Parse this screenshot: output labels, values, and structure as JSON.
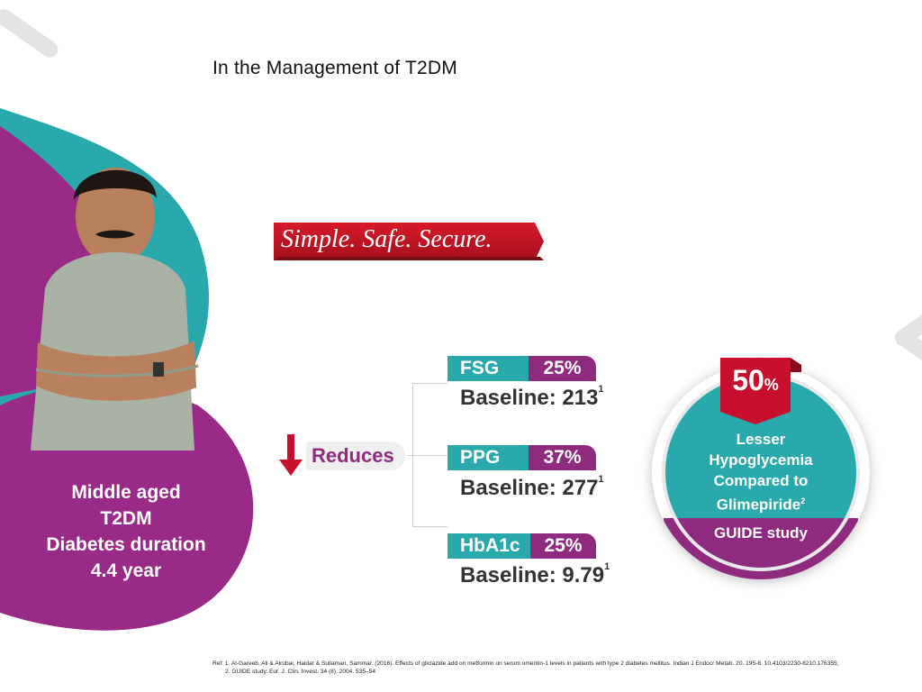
{
  "title": "In the Management of T2DM",
  "patient": {
    "lines": [
      "Middle aged",
      "T2DM",
      "Diabetes duration",
      "4.4 year"
    ]
  },
  "tagline": "Simple. Safe. Secure.",
  "reduces_label": "Reduces",
  "metrics": [
    {
      "name": "FSG",
      "percent": "25%",
      "baseline": "Baseline: 213",
      "ref": "1"
    },
    {
      "name": "PPG",
      "percent": "37%",
      "baseline": "Baseline: 277",
      "ref": "1"
    },
    {
      "name": "HbA1c",
      "percent": "25%",
      "baseline": "Baseline: 9.79",
      "ref": "1"
    }
  ],
  "badge": {
    "value": "50",
    "unit": "%",
    "line1": "Lesser",
    "line2": "Hypoglycemia",
    "line3": "Compared to",
    "line4": "Glimepiride",
    "line4_ref": "2",
    "study": "GUIDE study"
  },
  "references": {
    "line1": "Ref: 1. Al-Gareeb, Ali & Alrubai, Haidar & Suliaman, Sammar. (2016). Effects of gliclazide add on metformin on serum omentin-1 levels in patients with type 2 diabetes mellitus. Indian J Endocr Metab. 20. 195-8. 10.4103/2230-8210.176355;",
    "line2": "2. GUIDE study. Eur. J. Clin. Invest. 34 (8), 2004. 535–54"
  },
  "colors": {
    "teal": "#2aa9ad",
    "purple": "#8e2b7f",
    "red": "#c8102e"
  }
}
